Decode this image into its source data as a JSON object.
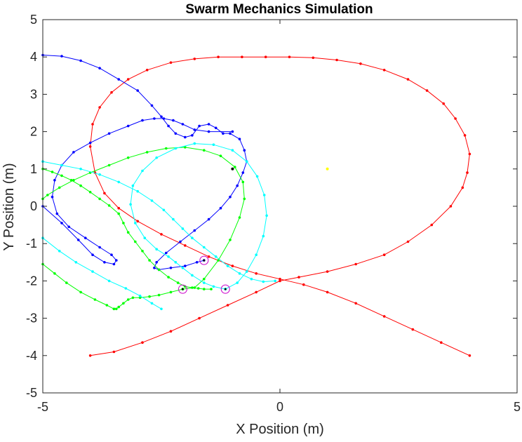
{
  "chart_data": {
    "type": "line",
    "title": "Swarm Mechanics Simulation",
    "xlabel": "X Position (m)",
    "ylabel": "Y Position (m)",
    "xlim": [
      -5,
      5
    ],
    "ylim": [
      -5,
      5
    ],
    "xticks": [
      "-5",
      "0",
      "5"
    ],
    "yticks": [
      "-5",
      "-4",
      "-3",
      "-2",
      "-1",
      "0",
      "1",
      "2",
      "3",
      "4",
      "5"
    ],
    "grid": false,
    "series": [
      {
        "color": "#ff0000",
        "x": [
          4.0,
          3.4,
          2.8,
          2.2,
          1.6,
          1.0,
          0.5,
          0.0,
          -0.5,
          -1.0,
          -1.5,
          -2.0,
          -2.5,
          -3.0,
          -3.4,
          -3.7,
          -3.9,
          -4.0,
          -3.95,
          -3.8,
          -3.55,
          -3.2,
          -2.8,
          -2.3,
          -1.8,
          -1.3,
          -0.8,
          -0.3,
          0.2,
          0.7,
          1.2,
          1.7,
          2.2,
          2.7,
          3.1,
          3.45,
          3.7,
          3.9,
          4.0,
          3.95,
          3.85,
          3.6,
          3.2,
          2.7,
          2.2,
          1.6,
          1.0,
          0.4,
          0.0,
          -0.5,
          -1.1,
          -1.7,
          -2.3,
          -2.9,
          -3.5,
          -4.0
        ],
        "y": [
          -4.0,
          -3.65,
          -3.3,
          -2.95,
          -2.6,
          -2.3,
          -2.1,
          -1.95,
          -1.8,
          -1.6,
          -1.35,
          -1.05,
          -0.75,
          -0.4,
          -0.05,
          0.35,
          0.9,
          1.6,
          2.2,
          2.65,
          3.05,
          3.4,
          3.65,
          3.85,
          3.95,
          4.0,
          4.0,
          4.0,
          4.0,
          3.98,
          3.92,
          3.82,
          3.65,
          3.4,
          3.1,
          2.75,
          2.35,
          1.9,
          1.4,
          0.9,
          0.5,
          0.0,
          -0.5,
          -0.95,
          -1.3,
          -1.55,
          -1.75,
          -1.9,
          -2.0,
          -2.3,
          -2.65,
          -3.0,
          -3.35,
          -3.65,
          -3.9,
          -4.0
        ]
      },
      {
        "color": "#0000ff",
        "x": [
          -5.0,
          -4.6,
          -4.2,
          -3.8,
          -3.4,
          -3.0,
          -2.7,
          -2.5,
          -2.35,
          -2.2,
          -2.0,
          -1.85,
          -1.7,
          -1.5,
          -1.35,
          -1.2,
          -1.05,
          -0.85,
          -0.75,
          -0.7,
          -0.78,
          -0.9,
          -1.05,
          -1.25,
          -1.5,
          -1.8,
          -2.1,
          -2.4,
          -2.6,
          -2.65,
          -2.55,
          -2.3,
          -2.0,
          -1.75,
          -1.6
        ],
        "y": [
          4.05,
          4.02,
          3.9,
          3.7,
          3.4,
          3.1,
          2.7,
          2.4,
          2.15,
          1.95,
          1.85,
          1.9,
          2.15,
          2.2,
          2.1,
          1.95,
          1.95,
          1.8,
          1.5,
          1.2,
          0.9,
          0.55,
          0.25,
          -0.05,
          -0.35,
          -0.65,
          -0.95,
          -1.25,
          -1.5,
          -1.65,
          -1.7,
          -1.65,
          -1.6,
          -1.5,
          -1.45
        ]
      },
      {
        "color": "#0000ff",
        "x": [
          -1.0,
          -1.5,
          -1.8,
          -2.05,
          -2.25,
          -2.45,
          -2.65,
          -2.9,
          -3.2,
          -3.6,
          -4.0,
          -4.35,
          -4.6,
          -4.75,
          -4.8,
          -4.7,
          -4.45,
          -4.1,
          -3.8,
          -3.55,
          -3.45,
          -3.5,
          -3.7,
          -3.95,
          -4.25,
          -4.6,
          -5.0
        ],
        "y": [
          2.0,
          2.0,
          2.05,
          2.2,
          2.3,
          2.35,
          2.35,
          2.3,
          2.15,
          1.95,
          1.7,
          1.45,
          1.1,
          0.7,
          0.25,
          -0.2,
          -0.55,
          -0.85,
          -1.1,
          -1.3,
          -1.45,
          -1.55,
          -1.5,
          -1.3,
          -0.9,
          -0.45,
          0.0
        ]
      },
      {
        "color": "#00ff00",
        "x": [
          -5.0,
          -4.8,
          -4.6,
          -4.4,
          -4.2,
          -4.0,
          -3.8,
          -3.6,
          -3.4,
          -3.3,
          -3.2,
          -3.05,
          -2.9,
          -2.75,
          -2.55,
          -2.35,
          -2.15,
          -2.0,
          -1.85,
          -1.72,
          -1.6,
          -1.45
        ],
        "y": [
          1.0,
          0.92,
          0.82,
          0.7,
          0.55,
          0.38,
          0.2,
          0.02,
          -0.2,
          -0.45,
          -0.7,
          -0.95,
          -1.2,
          -1.45,
          -1.7,
          -1.9,
          -2.05,
          -2.15,
          -2.18,
          -2.2,
          -2.22,
          -2.22
        ]
      },
      {
        "color": "#00ff00",
        "x": [
          -2.05,
          -2.3,
          -2.55,
          -2.75,
          -2.95,
          -3.1,
          -3.2,
          -3.3,
          -3.4,
          -3.45,
          -3.5
        ],
        "y": [
          -2.22,
          -2.3,
          -2.38,
          -2.42,
          -2.45,
          -2.45,
          -2.5,
          -2.6,
          -2.7,
          -2.75,
          -2.75
        ]
      },
      {
        "color": "#00ff00",
        "x": [
          -2.05,
          -1.8,
          -1.6,
          -1.3,
          -1.05,
          -0.85,
          -0.75,
          -0.78,
          -0.95,
          -1.25,
          -1.6,
          -2.0,
          -2.4,
          -2.8,
          -3.2,
          -3.6,
          -4.0,
          -4.35,
          -4.65,
          -4.9,
          -5.0
        ],
        "y": [
          -2.22,
          -2.18,
          -1.95,
          -1.45,
          -0.9,
          -0.3,
          0.2,
          0.65,
          1.05,
          1.35,
          1.5,
          1.58,
          1.55,
          1.45,
          1.3,
          1.1,
          0.9,
          0.7,
          0.5,
          0.3,
          0.2
        ]
      },
      {
        "color": "#00ff00",
        "x": [
          -5.0,
          -4.75,
          -4.5,
          -4.2,
          -3.9,
          -3.65,
          -3.5
        ],
        "y": [
          -1.55,
          -1.8,
          -2.05,
          -2.3,
          -2.5,
          -2.65,
          -2.75
        ]
      },
      {
        "color": "#00ffff",
        "x": [
          -5.0,
          -4.6,
          -4.2,
          -3.8,
          -3.4,
          -3.0,
          -2.7,
          -2.45,
          -2.25,
          -2.05,
          -1.85,
          -1.6,
          -1.35,
          -1.1,
          -0.85,
          -0.6,
          -0.35,
          -0.1
        ],
        "y": [
          1.2,
          1.1,
          1.0,
          0.85,
          0.65,
          0.4,
          0.15,
          -0.1,
          -0.35,
          -0.6,
          -0.85,
          -1.1,
          -1.35,
          -1.6,
          -1.8,
          -1.95,
          -2.02,
          -2.0
        ]
      },
      {
        "color": "#00ffff",
        "x": [
          -1.15,
          -0.9,
          -0.7,
          -0.5,
          -0.35,
          -0.28,
          -0.33,
          -0.48,
          -0.7,
          -1.0,
          -1.4,
          -1.8,
          -2.2,
          -2.6,
          -2.9,
          -3.1,
          -3.15,
          -3.05,
          -2.85,
          -2.6,
          -2.35,
          -2.2,
          -2.05,
          -1.85,
          -1.6,
          -1.4,
          -1.15
        ],
        "y": [
          -2.22,
          -2.05,
          -1.75,
          -1.3,
          -0.8,
          -0.25,
          0.3,
          0.8,
          1.2,
          1.5,
          1.65,
          1.68,
          1.55,
          1.3,
          0.95,
          0.55,
          0.05,
          -0.45,
          -0.85,
          -1.15,
          -1.35,
          -1.5,
          -1.65,
          -1.85,
          -2.05,
          -2.15,
          -2.22
        ]
      },
      {
        "color": "#00ffff",
        "x": [
          -5.0,
          -4.65,
          -4.3,
          -3.95,
          -3.6,
          -3.25,
          -2.95,
          -2.7,
          -2.5
        ],
        "y": [
          -0.85,
          -1.2,
          -1.5,
          -1.75,
          -2.0,
          -2.2,
          -2.4,
          -2.6,
          -2.75
        ]
      }
    ],
    "markers": [
      {
        "x": -1.6,
        "y": -1.45,
        "color": "#cc00cc",
        "shape": "circle"
      },
      {
        "x": -2.05,
        "y": -2.22,
        "color": "#cc00cc",
        "shape": "circle"
      },
      {
        "x": -1.15,
        "y": -2.22,
        "color": "#cc00cc",
        "shape": "circle"
      },
      {
        "x": -1.0,
        "y": 1.0,
        "color": "#000000",
        "shape": "dot"
      },
      {
        "x": 1.0,
        "y": 1.0,
        "color": "#ffff00",
        "shape": "dot"
      }
    ]
  }
}
